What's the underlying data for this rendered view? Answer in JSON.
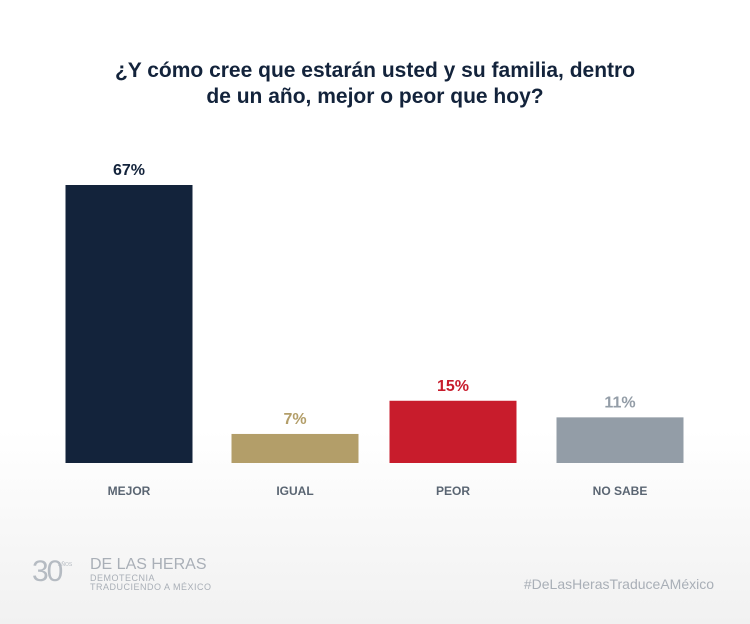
{
  "chart_data": {
    "type": "bar",
    "title_lines": [
      "¿Y cómo cree que estarán usted y su familia, dentro",
      "de un año, mejor o peor que hoy?"
    ],
    "categories": [
      "MEJOR",
      "IGUAL",
      "PEOR",
      "NO SABE"
    ],
    "values": [
      67,
      7,
      15,
      11
    ],
    "value_labels": [
      "67%",
      "7%",
      "15%",
      "11%"
    ],
    "colors": [
      "#13233b",
      "#b39e69",
      "#c81c2c",
      "#939da7"
    ],
    "ylim": [
      0,
      67
    ],
    "xlabel": "",
    "ylabel": ""
  },
  "footer": {
    "logo": {
      "number": "30",
      "years": "AÑOS",
      "name": "DE LAS HERAS",
      "line1": "DEMOTECNIA",
      "line2": "TRADUCIENDO A MÉXICO"
    },
    "hashtag": "#DeLasHerasTraduceAMéxico"
  },
  "colors": {
    "title": "#13233b",
    "category_label": "#5a6572",
    "footer_text": "#a9afb7"
  }
}
